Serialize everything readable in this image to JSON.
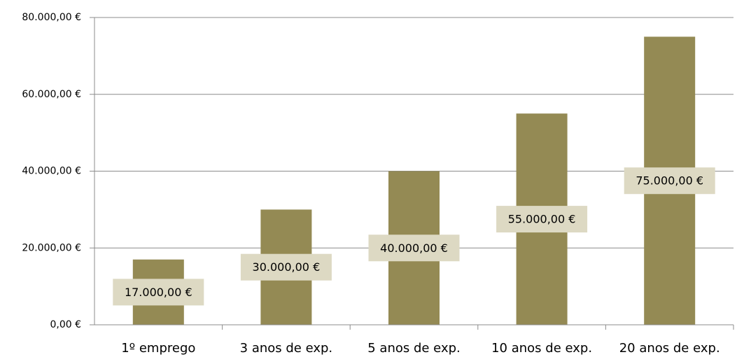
{
  "chart_data": {
    "type": "bar",
    "categories": [
      "1º emprego",
      "3 anos de exp.",
      "5 anos de exp.",
      "10 anos de exp.",
      "20 anos de exp."
    ],
    "values": [
      17000,
      30000,
      40000,
      55000,
      75000
    ],
    "value_labels": [
      "17.000,00 €",
      "30.000,00 €",
      "40.000,00 €",
      "55.000,00 €",
      "75.000,00 €"
    ],
    "color": "#948a54",
    "ylim": [
      0,
      80000
    ],
    "yticks": [
      {
        "value": 0,
        "label": "0,00 €"
      },
      {
        "value": 20000,
        "label": "20.000,00 €"
      },
      {
        "value": 40000,
        "label": "40.000,00 €"
      },
      {
        "value": 60000,
        "label": "60.000,00 €"
      },
      {
        "value": 80000,
        "label": "80.000,00 €"
      }
    ],
    "grid": true
  }
}
